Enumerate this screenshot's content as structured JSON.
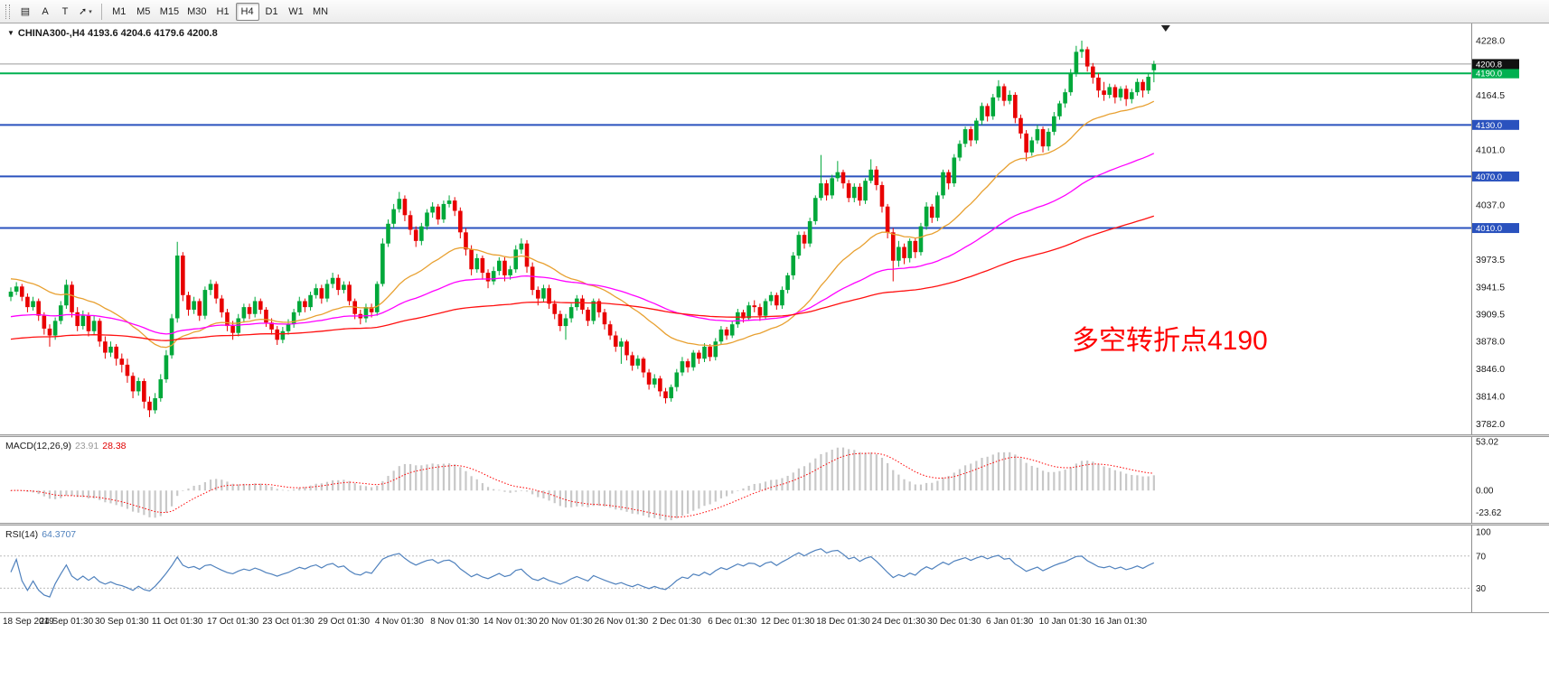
{
  "toolbar": {
    "tools": [
      {
        "name": "chart-objects",
        "glyph": "▤"
      },
      {
        "name": "text-label-a",
        "glyph": "A"
      },
      {
        "name": "text-label-t",
        "glyph": "T"
      },
      {
        "name": "arrow-objects",
        "glyph": "➚",
        "caret": "▾"
      }
    ],
    "timeframes": [
      "M1",
      "M5",
      "M15",
      "M30",
      "H1",
      "H4",
      "D1",
      "W1",
      "MN"
    ],
    "active_timeframe": "H4"
  },
  "chart_header": {
    "collapse_glyph": "▼",
    "symbol": "CHINA300-,H4",
    "ohlc_text": "4193.6 4204.6 4179.6 4200.8"
  },
  "annotation": {
    "text": "多空转折点4190",
    "color": "#FF0000"
  },
  "chart_data": {
    "type": "candlestick",
    "symbol": "CHINA300-",
    "timeframe": "H4",
    "colors": {
      "bull": "#00A83A",
      "bear": "#E80000",
      "background": "#FFFFFF",
      "axis_text": "#1A1A1A"
    },
    "bid": {
      "value": 4200.8,
      "line_color": "#9A9A9A",
      "badge_color": "#111111"
    },
    "price_axis": {
      "ticks": [
        4228.0,
        4164.5,
        4101.0,
        4037.0,
        3973.5,
        3941.5,
        3909.5,
        3878.0,
        3846.0,
        3814.0,
        3782.0
      ]
    },
    "levels": [
      {
        "value": 4190.0,
        "color": "#00B050",
        "width": 2
      },
      {
        "value": 4130.0,
        "color": "#2A52BE",
        "width": 2
      },
      {
        "value": 4070.0,
        "color": "#2A52BE",
        "width": 2
      },
      {
        "value": 4010.0,
        "color": "#2A52BE",
        "width": 2
      }
    ],
    "moving_averages": [
      {
        "period": 28,
        "color": "#E8A030",
        "seed": 3952
      },
      {
        "period": 70,
        "color": "#FF00FF",
        "seed": 3906
      },
      {
        "period": 160,
        "color": "#FF1010",
        "seed": 3880
      }
    ],
    "x_axis": {
      "label_every": 10,
      "labels": [
        "18 Sep 2019",
        "24 Sep 01:30",
        "30 Sep 01:30",
        "11 Oct 01:30",
        "17 Oct 01:30",
        "23 Oct 01:30",
        "29 Oct 01:30",
        "4 Nov 01:30",
        "8 Nov 01:30",
        "14 Nov 01:30",
        "20 Nov 01:30",
        "26 Nov 01:30",
        "2 Dec 01:30",
        "6 Dec 01:30",
        "12 Dec 01:30",
        "18 Dec 01:30",
        "24 Dec 01:30",
        "30 Dec 01:30",
        "6 Jan 01:30",
        "10 Jan 01:30",
        "16 Jan 01:30"
      ]
    },
    "candles": [
      [
        3930,
        3941,
        3925,
        3936
      ],
      [
        3936,
        3947,
        3932,
        3942
      ],
      [
        3942,
        3945,
        3925,
        3930
      ],
      [
        3930,
        3934,
        3912,
        3918
      ],
      [
        3918,
        3930,
        3914,
        3925
      ],
      [
        3925,
        3928,
        3902,
        3908
      ],
      [
        3908,
        3912,
        3886,
        3893
      ],
      [
        3893,
        3898,
        3872,
        3885
      ],
      [
        3885,
        3906,
        3880,
        3902
      ],
      [
        3902,
        3925,
        3898,
        3920
      ],
      [
        3920,
        3950,
        3916,
        3944
      ],
      [
        3944,
        3948,
        3906,
        3912
      ],
      [
        3912,
        3918,
        3890,
        3896
      ],
      [
        3896,
        3914,
        3892,
        3908
      ],
      [
        3908,
        3912,
        3884,
        3890
      ],
      [
        3890,
        3908,
        3886,
        3902
      ],
      [
        3902,
        3905,
        3872,
        3878
      ],
      [
        3878,
        3884,
        3858,
        3865
      ],
      [
        3865,
        3878,
        3860,
        3872
      ],
      [
        3872,
        3875,
        3850,
        3858
      ],
      [
        3858,
        3864,
        3842,
        3851
      ],
      [
        3851,
        3858,
        3830,
        3838
      ],
      [
        3838,
        3842,
        3812,
        3820
      ],
      [
        3820,
        3836,
        3815,
        3832
      ],
      [
        3832,
        3835,
        3800,
        3808
      ],
      [
        3808,
        3814,
        3790,
        3798
      ],
      [
        3798,
        3818,
        3794,
        3812
      ],
      [
        3812,
        3840,
        3808,
        3834
      ],
      [
        3834,
        3868,
        3830,
        3862
      ],
      [
        3862,
        3910,
        3858,
        3905
      ],
      [
        3905,
        3994,
        3900,
        3978
      ],
      [
        3978,
        3982,
        3925,
        3932
      ],
      [
        3932,
        3936,
        3908,
        3915
      ],
      [
        3915,
        3930,
        3910,
        3925
      ],
      [
        3925,
        3928,
        3902,
        3908
      ],
      [
        3908,
        3942,
        3904,
        3938
      ],
      [
        3938,
        3950,
        3932,
        3945
      ],
      [
        3945,
        3948,
        3922,
        3928
      ],
      [
        3928,
        3932,
        3906,
        3912
      ],
      [
        3912,
        3916,
        3890,
        3896
      ],
      [
        3896,
        3902,
        3880,
        3888
      ],
      [
        3888,
        3910,
        3884,
        3905
      ],
      [
        3905,
        3922,
        3900,
        3918
      ],
      [
        3918,
        3922,
        3904,
        3910
      ],
      [
        3910,
        3930,
        3906,
        3925
      ],
      [
        3925,
        3928,
        3910,
        3915
      ],
      [
        3915,
        3918,
        3895,
        3900
      ],
      [
        3900,
        3905,
        3886,
        3892
      ],
      [
        3892,
        3896,
        3874,
        3880
      ],
      [
        3880,
        3895,
        3876,
        3890
      ],
      [
        3890,
        3904,
        3886,
        3898
      ],
      [
        3898,
        3916,
        3894,
        3912
      ],
      [
        3912,
        3930,
        3908,
        3925
      ],
      [
        3925,
        3928,
        3912,
        3918
      ],
      [
        3918,
        3936,
        3914,
        3932
      ],
      [
        3932,
        3945,
        3928,
        3940
      ],
      [
        3940,
        3944,
        3922,
        3928
      ],
      [
        3928,
        3950,
        3924,
        3945
      ],
      [
        3945,
        3958,
        3940,
        3952
      ],
      [
        3952,
        3956,
        3932,
        3938
      ],
      [
        3938,
        3948,
        3934,
        3944
      ],
      [
        3944,
        3948,
        3920,
        3925
      ],
      [
        3925,
        3928,
        3904,
        3910
      ],
      [
        3910,
        3915,
        3898,
        3905
      ],
      [
        3905,
        3922,
        3900,
        3918
      ],
      [
        3918,
        3922,
        3906,
        3912
      ],
      [
        3912,
        3948,
        3908,
        3945
      ],
      [
        3945,
        3998,
        3942,
        3992
      ],
      [
        3992,
        4020,
        3988,
        4015
      ],
      [
        4015,
        4038,
        4010,
        4032
      ],
      [
        4032,
        4052,
        4028,
        4044
      ],
      [
        4044,
        4048,
        4018,
        4025
      ],
      [
        4025,
        4030,
        4002,
        4008
      ],
      [
        4008,
        4012,
        3988,
        3995
      ],
      [
        3995,
        4016,
        3990,
        4012
      ],
      [
        4012,
        4032,
        4008,
        4028
      ],
      [
        4028,
        4040,
        4022,
        4035
      ],
      [
        4035,
        4038,
        4014,
        4020
      ],
      [
        4020,
        4042,
        4016,
        4038
      ],
      [
        4038,
        4048,
        4034,
        4042
      ],
      [
        4042,
        4046,
        4024,
        4030
      ],
      [
        4030,
        4034,
        3998,
        4005
      ],
      [
        4005,
        4010,
        3978,
        3985
      ],
      [
        3985,
        3990,
        3955,
        3962
      ],
      [
        3962,
        3980,
        3958,
        3975
      ],
      [
        3975,
        3978,
        3950,
        3958
      ],
      [
        3958,
        3962,
        3940,
        3948
      ],
      [
        3948,
        3965,
        3944,
        3960
      ],
      [
        3960,
        3976,
        3955,
        3972
      ],
      [
        3972,
        3976,
        3948,
        3955
      ],
      [
        3955,
        3966,
        3950,
        3962
      ],
      [
        3962,
        3990,
        3958,
        3985
      ],
      [
        3985,
        3998,
        3980,
        3992
      ],
      [
        3992,
        3996,
        3958,
        3965
      ],
      [
        3965,
        3970,
        3932,
        3938
      ],
      [
        3938,
        3942,
        3920,
        3928
      ],
      [
        3928,
        3944,
        3924,
        3940
      ],
      [
        3940,
        3944,
        3916,
        3922
      ],
      [
        3922,
        3926,
        3904,
        3910
      ],
      [
        3910,
        3914,
        3890,
        3896
      ],
      [
        3896,
        3910,
        3880,
        3905
      ],
      [
        3905,
        3922,
        3900,
        3918
      ],
      [
        3918,
        3932,
        3914,
        3928
      ],
      [
        3928,
        3932,
        3910,
        3915
      ],
      [
        3915,
        3918,
        3896,
        3902
      ],
      [
        3902,
        3928,
        3898,
        3925
      ],
      [
        3925,
        3928,
        3906,
        3912
      ],
      [
        3912,
        3916,
        3892,
        3898
      ],
      [
        3898,
        3902,
        3880,
        3885
      ],
      [
        3885,
        3890,
        3866,
        3872
      ],
      [
        3872,
        3882,
        3852,
        3878
      ],
      [
        3878,
        3880,
        3856,
        3862
      ],
      [
        3862,
        3866,
        3844,
        3850
      ],
      [
        3850,
        3862,
        3846,
        3858
      ],
      [
        3858,
        3860,
        3836,
        3842
      ],
      [
        3842,
        3846,
        3822,
        3828
      ],
      [
        3828,
        3840,
        3824,
        3835
      ],
      [
        3835,
        3838,
        3814,
        3820
      ],
      [
        3820,
        3824,
        3806,
        3812
      ],
      [
        3812,
        3828,
        3808,
        3825
      ],
      [
        3825,
        3846,
        3820,
        3842
      ],
      [
        3842,
        3860,
        3838,
        3855
      ],
      [
        3855,
        3858,
        3842,
        3848
      ],
      [
        3848,
        3868,
        3844,
        3865
      ],
      [
        3865,
        3868,
        3852,
        3858
      ],
      [
        3858,
        3876,
        3854,
        3872
      ],
      [
        3872,
        3875,
        3855,
        3860
      ],
      [
        3860,
        3882,
        3856,
        3878
      ],
      [
        3878,
        3896,
        3874,
        3892
      ],
      [
        3892,
        3895,
        3880,
        3885
      ],
      [
        3885,
        3902,
        3882,
        3898
      ],
      [
        3898,
        3916,
        3894,
        3912
      ],
      [
        3912,
        3915,
        3900,
        3905
      ],
      [
        3905,
        3924,
        3902,
        3920
      ],
      [
        3920,
        3926,
        3912,
        3918
      ],
      [
        3918,
        3922,
        3902,
        3908
      ],
      [
        3908,
        3928,
        3904,
        3925
      ],
      [
        3925,
        3936,
        3920,
        3932
      ],
      [
        3932,
        3935,
        3915,
        3920
      ],
      [
        3920,
        3942,
        3916,
        3938
      ],
      [
        3938,
        3958,
        3934,
        3955
      ],
      [
        3955,
        3982,
        3950,
        3978
      ],
      [
        3978,
        4006,
        3974,
        4002
      ],
      [
        4002,
        4006,
        3986,
        3992
      ],
      [
        3992,
        4022,
        3988,
        4018
      ],
      [
        4018,
        4048,
        4014,
        4045
      ],
      [
        4045,
        4095,
        4042,
        4062
      ],
      [
        4062,
        4066,
        4042,
        4048
      ],
      [
        4048,
        4072,
        4044,
        4068
      ],
      [
        4068,
        4088,
        4064,
        4075
      ],
      [
        4075,
        4078,
        4056,
        4062
      ],
      [
        4062,
        4066,
        4040,
        4045
      ],
      [
        4045,
        4062,
        4040,
        4058
      ],
      [
        4058,
        4062,
        4036,
        4042
      ],
      [
        4042,
        4068,
        4038,
        4065
      ],
      [
        4065,
        4090,
        4062,
        4078
      ],
      [
        4078,
        4082,
        4054,
        4060
      ],
      [
        4060,
        4064,
        4028,
        4035
      ],
      [
        4035,
        4038,
        3998,
        4005
      ],
      [
        4005,
        4010,
        3948,
        3972
      ],
      [
        3972,
        3995,
        3965,
        3988
      ],
      [
        3988,
        3992,
        3968,
        3975
      ],
      [
        3975,
        3998,
        3970,
        3995
      ],
      [
        3995,
        3999,
        3975,
        3982
      ],
      [
        3982,
        4016,
        3978,
        4012
      ],
      [
        4012,
        4040,
        4008,
        4035
      ],
      [
        4035,
        4038,
        4016,
        4022
      ],
      [
        4022,
        4052,
        4018,
        4048
      ],
      [
        4048,
        4078,
        4044,
        4075
      ],
      [
        4075,
        4078,
        4055,
        4062
      ],
      [
        4062,
        4096,
        4058,
        4092
      ],
      [
        4092,
        4112,
        4088,
        4108
      ],
      [
        4108,
        4128,
        4104,
        4125
      ],
      [
        4125,
        4128,
        4105,
        4112
      ],
      [
        4112,
        4138,
        4108,
        4135
      ],
      [
        4135,
        4156,
        4130,
        4152
      ],
      [
        4152,
        4155,
        4134,
        4140
      ],
      [
        4140,
        4166,
        4136,
        4162
      ],
      [
        4162,
        4182,
        4158,
        4175
      ],
      [
        4175,
        4178,
        4152,
        4158
      ],
      [
        4158,
        4170,
        4154,
        4165
      ],
      [
        4165,
        4168,
        4132,
        4138
      ],
      [
        4138,
        4142,
        4114,
        4120
      ],
      [
        4120,
        4124,
        4088,
        4098
      ],
      [
        4098,
        4116,
        4094,
        4112
      ],
      [
        4112,
        4130,
        4108,
        4125
      ],
      [
        4125,
        4128,
        4098,
        4105
      ],
      [
        4105,
        4126,
        4100,
        4122
      ],
      [
        4122,
        4145,
        4118,
        4140
      ],
      [
        4140,
        4158,
        4136,
        4155
      ],
      [
        4155,
        4172,
        4150,
        4168
      ],
      [
        4168,
        4195,
        4164,
        4190
      ],
      [
        4190,
        4222,
        4186,
        4215
      ],
      [
        4215,
        4228,
        4208,
        4218
      ],
      [
        4218,
        4221,
        4192,
        4198
      ],
      [
        4198,
        4202,
        4178,
        4185
      ],
      [
        4185,
        4190,
        4162,
        4170
      ],
      [
        4170,
        4180,
        4158,
        4165
      ],
      [
        4165,
        4178,
        4161,
        4174
      ],
      [
        4174,
        4177,
        4155,
        4162
      ],
      [
        4162,
        4175,
        4158,
        4172
      ],
      [
        4172,
        4176,
        4152,
        4160
      ],
      [
        4160,
        4172,
        4155,
        4168
      ],
      [
        4168,
        4184,
        4164,
        4180
      ],
      [
        4180,
        4183,
        4162,
        4170
      ],
      [
        4170,
        4190,
        4166,
        4186
      ],
      [
        4193.6,
        4204.6,
        4179.6,
        4200.8
      ]
    ],
    "indicators": {
      "macd": {
        "label": "MACD(12,26,9)",
        "main_value": "23.91",
        "signal_value": "28.38",
        "fast": 12,
        "slow": 26,
        "signal": 9,
        "ticks": [
          53.02,
          0.0,
          -23.62
        ],
        "histogram_color": "#C8C8C8",
        "signal_color": "#FF0000"
      },
      "rsi": {
        "label": "RSI(14)",
        "value": "64.3707",
        "period": 14,
        "ticks": [
          100,
          70,
          30
        ],
        "levels": [
          70,
          30
        ],
        "line_color": "#4F81BD",
        "level_color": "#BBBBBB"
      }
    }
  }
}
